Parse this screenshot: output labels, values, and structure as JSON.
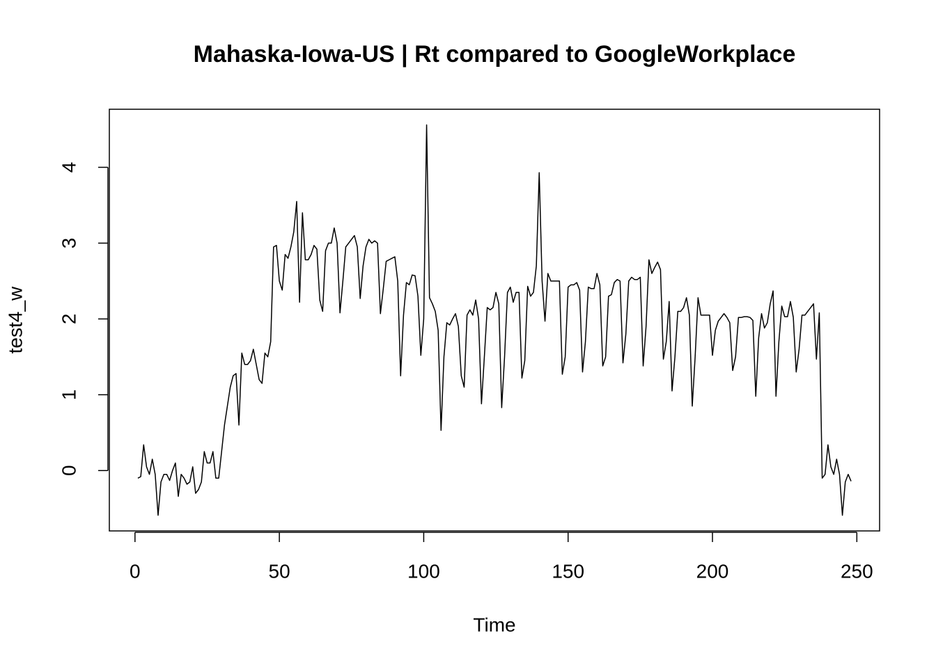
{
  "chart_data": {
    "type": "line",
    "title": "Mahaska-Iowa-US | Rt compared to GoogleWorkplace",
    "x_label": "Time",
    "y_label": "test4_w",
    "xlim": [
      -8.88,
      257.88
    ],
    "ylim": [
      -0.796,
      4.766
    ],
    "xticks": [
      0,
      50,
      100,
      150,
      200,
      250
    ],
    "yticks": [
      0,
      1,
      2,
      3,
      4
    ],
    "series": [
      {
        "color": "#000000",
        "x": [
          1,
          2,
          3,
          4,
          5,
          6,
          7,
          8,
          9,
          10,
          11,
          12,
          13,
          14,
          15,
          16,
          17,
          18,
          19,
          20,
          21,
          22,
          23,
          24,
          25,
          26,
          27,
          28,
          29,
          30,
          31,
          32,
          33,
          34,
          35,
          36,
          37,
          38,
          39,
          40,
          41,
          42,
          43,
          44,
          45,
          46,
          47,
          48,
          49,
          50,
          51,
          52,
          53,
          54,
          55,
          56,
          57,
          58,
          59,
          60,
          61,
          62,
          63,
          64,
          65,
          66,
          67,
          68,
          69,
          70,
          71,
          72,
          73,
          74,
          75,
          76,
          77,
          78,
          79,
          80,
          81,
          82,
          83,
          84,
          85,
          86,
          87,
          88,
          89,
          90,
          91,
          92,
          93,
          94,
          95,
          96,
          97,
          98,
          99,
          100,
          101,
          102,
          103,
          104,
          105,
          106,
          107,
          108,
          109,
          110,
          111,
          112,
          113,
          114,
          115,
          116,
          117,
          118,
          119,
          120,
          121,
          122,
          123,
          124,
          125,
          126,
          127,
          128,
          129,
          130,
          131,
          132,
          133,
          134,
          135,
          136,
          137,
          138,
          139,
          140,
          141,
          142,
          143,
          144,
          145,
          146,
          147,
          148,
          149,
          150,
          151,
          152,
          153,
          154,
          155,
          156,
          157,
          158,
          159,
          160,
          161,
          162,
          163,
          164,
          165,
          166,
          167,
          168,
          169,
          170,
          171,
          172,
          173,
          174,
          175,
          176,
          177,
          178,
          179,
          180,
          181,
          182,
          183,
          184,
          185,
          186,
          187,
          188,
          189,
          190,
          191,
          192,
          193,
          194,
          195,
          196,
          197,
          198,
          199,
          200,
          201,
          202,
          203,
          204,
          205,
          206,
          207,
          208,
          209,
          210,
          211,
          212,
          213,
          214,
          215,
          216,
          217,
          218,
          219,
          220,
          221,
          222,
          223,
          224,
          225,
          226,
          227,
          228,
          229,
          230,
          231,
          232,
          233,
          234,
          235,
          236,
          237,
          238,
          239,
          240,
          241,
          242,
          243,
          244,
          245,
          246,
          247,
          248
        ],
        "values": [
          -0.1,
          -0.08,
          0.34,
          0.05,
          -0.05,
          0.15,
          -0.05,
          -0.59,
          -0.15,
          -0.05,
          -0.05,
          -0.13,
          0.0,
          0.1,
          -0.34,
          -0.05,
          -0.1,
          -0.18,
          -0.15,
          0.05,
          -0.3,
          -0.25,
          -0.15,
          0.25,
          0.1,
          0.1,
          0.25,
          -0.1,
          -0.1,
          0.25,
          0.6,
          0.85,
          1.1,
          1.25,
          1.28,
          0.6,
          1.55,
          1.4,
          1.4,
          1.45,
          1.6,
          1.4,
          1.2,
          1.15,
          1.55,
          1.5,
          1.7,
          2.95,
          2.97,
          2.5,
          2.38,
          2.85,
          2.8,
          2.95,
          3.15,
          3.55,
          2.22,
          3.4,
          2.78,
          2.78,
          2.85,
          2.97,
          2.92,
          2.25,
          2.1,
          2.9,
          3.0,
          3.0,
          3.2,
          3.0,
          2.08,
          2.5,
          2.95,
          3.0,
          3.05,
          3.1,
          2.95,
          2.27,
          2.7,
          2.95,
          3.05,
          3.0,
          3.03,
          3.0,
          2.07,
          2.4,
          2.76,
          2.78,
          2.8,
          2.82,
          2.5,
          1.25,
          2.05,
          2.48,
          2.45,
          2.58,
          2.57,
          2.3,
          1.52,
          2.0,
          4.56,
          2.28,
          2.2,
          2.1,
          1.85,
          0.53,
          1.5,
          1.95,
          1.92,
          2.0,
          2.07,
          1.9,
          1.25,
          1.1,
          2.05,
          2.12,
          2.05,
          2.25,
          2.0,
          0.88,
          1.5,
          2.15,
          2.12,
          2.15,
          2.35,
          2.2,
          0.83,
          1.5,
          2.35,
          2.42,
          2.22,
          2.35,
          2.35,
          1.22,
          1.45,
          2.43,
          2.3,
          2.35,
          2.7,
          3.93,
          2.5,
          1.97,
          2.6,
          2.5,
          2.5,
          2.5,
          2.5,
          1.27,
          1.5,
          2.42,
          2.45,
          2.45,
          2.48,
          2.38,
          1.3,
          1.7,
          2.42,
          2.4,
          2.4,
          2.6,
          2.45,
          1.38,
          1.5,
          2.3,
          2.32,
          2.48,
          2.52,
          2.5,
          1.42,
          1.8,
          2.5,
          2.55,
          2.52,
          2.52,
          2.55,
          1.38,
          1.9,
          2.78,
          2.6,
          2.68,
          2.75,
          2.65,
          1.47,
          1.7,
          2.23,
          1.05,
          1.5,
          2.1,
          2.1,
          2.15,
          2.28,
          2.05,
          0.85,
          1.5,
          2.28,
          2.05,
          2.05,
          2.05,
          2.05,
          1.52,
          1.85,
          1.97,
          2.02,
          2.07,
          2.02,
          1.95,
          1.32,
          1.5,
          2.02,
          2.02,
          2.03,
          2.03,
          2.02,
          1.98,
          0.98,
          1.75,
          2.07,
          1.88,
          1.95,
          2.2,
          2.37,
          0.98,
          1.7,
          2.17,
          2.03,
          2.03,
          2.23,
          2.02,
          1.3,
          1.6,
          2.05,
          2.05,
          2.1,
          2.15,
          2.2,
          1.47,
          2.08,
          -0.1,
          -0.05,
          0.34,
          0.05,
          -0.05,
          0.15,
          -0.05,
          -0.59,
          -0.15,
          -0.05,
          -0.14
        ]
      }
    ]
  }
}
